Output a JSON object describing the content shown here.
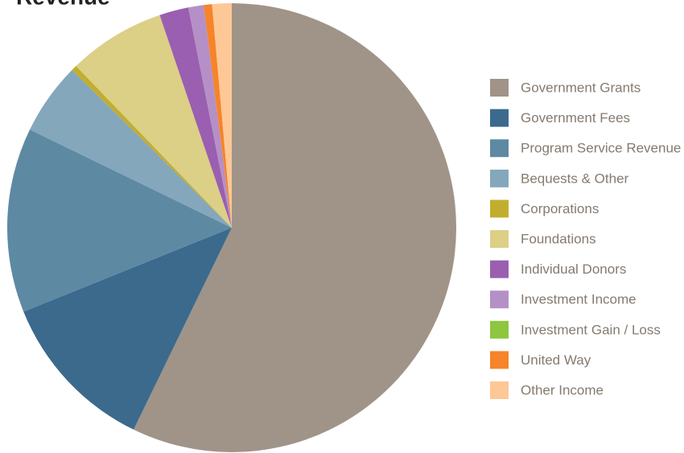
{
  "chart_data": {
    "type": "pie",
    "title": "Revenue",
    "categories": [
      "Government Grants",
      "Government Fees",
      "Program Service Revenue",
      "Bequests & Other",
      "Corporations",
      "Foundations",
      "Individual Donors",
      "Investment Income",
      "Investment Gain / Loss",
      "United Way",
      "Other Income"
    ],
    "values": [
      57.2,
      11.7,
      13.3,
      5.2,
      0.4,
      7.0,
      2.1,
      1.1,
      0,
      0.6,
      1.4
    ],
    "colors": [
      "#a09488",
      "#3b6a8d",
      "#5e89a3",
      "#84a7bc",
      "#c2ae2e",
      "#dccf86",
      "#9a5fb0",
      "#b590c7",
      "#8dc63f",
      "#f5842a",
      "#fdc896"
    ],
    "legend": "right"
  }
}
